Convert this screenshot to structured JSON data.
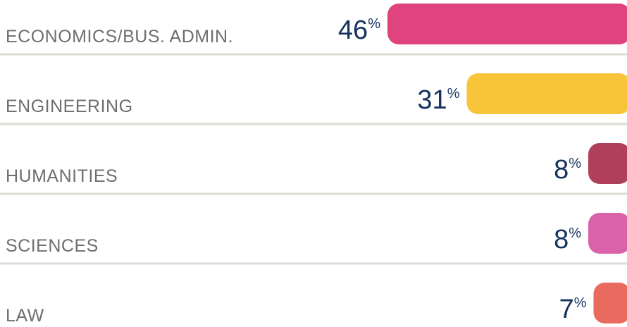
{
  "chart_data": {
    "type": "bar",
    "orientation": "horizontal",
    "categories": [
      "ECONOMICS/BUS. ADMIN.",
      "ENGINEERING",
      "HUMANITIES",
      "SCIENCES",
      "LAW"
    ],
    "values": [
      46,
      31,
      8,
      8,
      7
    ],
    "value_labels": [
      "46%",
      "31%",
      "8%",
      "8%",
      "7%"
    ],
    "colors": [
      "#e0447e",
      "#f8c43a",
      "#b0405a",
      "#d962a8",
      "#e96a5e"
    ]
  }
}
